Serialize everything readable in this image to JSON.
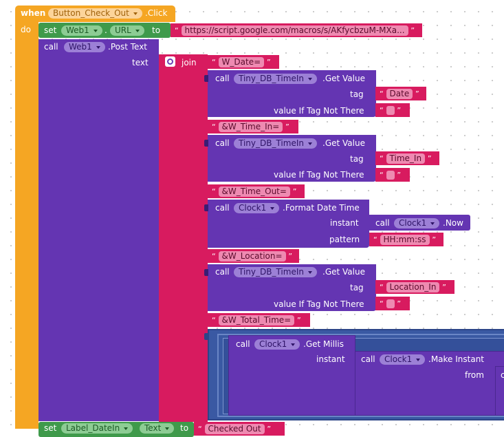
{
  "event": {
    "when": "when",
    "component": "Button_Check_Out",
    "event_name": ".Click",
    "do": "do"
  },
  "set_url": {
    "set": "set",
    "component": "Web1",
    "dot": ".",
    "property": "URL",
    "to": "to",
    "value": "https://script.google.com/macros/s/AKfycbzuM-MXa..."
  },
  "post_text": {
    "call": "call",
    "component": "Web1",
    "method": ".Post Text",
    "param": "text"
  },
  "join": {
    "label": "join"
  },
  "strings": {
    "w_date": "W_Date=",
    "w_time_in": "&W_Time_In=",
    "w_time_out": "&W_Time_Out=",
    "w_location": "&W_Location=",
    "w_total_time": "&W_Total_Time="
  },
  "db_date": {
    "call": "call",
    "component": "Tiny_DB_TimeIn",
    "method": ".Get Value",
    "tag_label": "tag",
    "tag_value": "Date",
    "default_label": "value If Tag Not There"
  },
  "db_time_in": {
    "call": "call",
    "component": "Tiny_DB_TimeIn",
    "method": ".Get Value",
    "tag_label": "tag",
    "tag_value": "Time_In",
    "default_label": "value If Tag Not There"
  },
  "format_time": {
    "call": "call",
    "component": "Clock1",
    "method": ".Format Date Time",
    "instant_label": "instant",
    "pattern_label": "pattern",
    "pattern_value": "HH:mm:ss"
  },
  "now": {
    "call": "call",
    "component": "Clock1",
    "method": ".Now"
  },
  "db_location": {
    "call": "call",
    "component": "Tiny_DB_TimeIn",
    "method": ".Get Value",
    "tag_label": "tag",
    "tag_value": "Location_In",
    "default_label": "value If Tag Not There"
  },
  "millis": {
    "call": "call",
    "component": "Clock1",
    "method": ".Get Millis",
    "instant_label": "instant"
  },
  "make_instant": {
    "call": "call",
    "component": "Clock1",
    "method": ".Make Instant",
    "from_label": "from",
    "from_value": "c"
  },
  "set_label": {
    "set": "set",
    "component": "Label_DateIn",
    "property": "Text",
    "to": "to",
    "value": "Checked Out"
  },
  "colors": {
    "event": "#f5a623",
    "setter": "#3f9a4b",
    "call": "#6435b2",
    "text": "#d81b5f",
    "math": "#3a59a3"
  }
}
